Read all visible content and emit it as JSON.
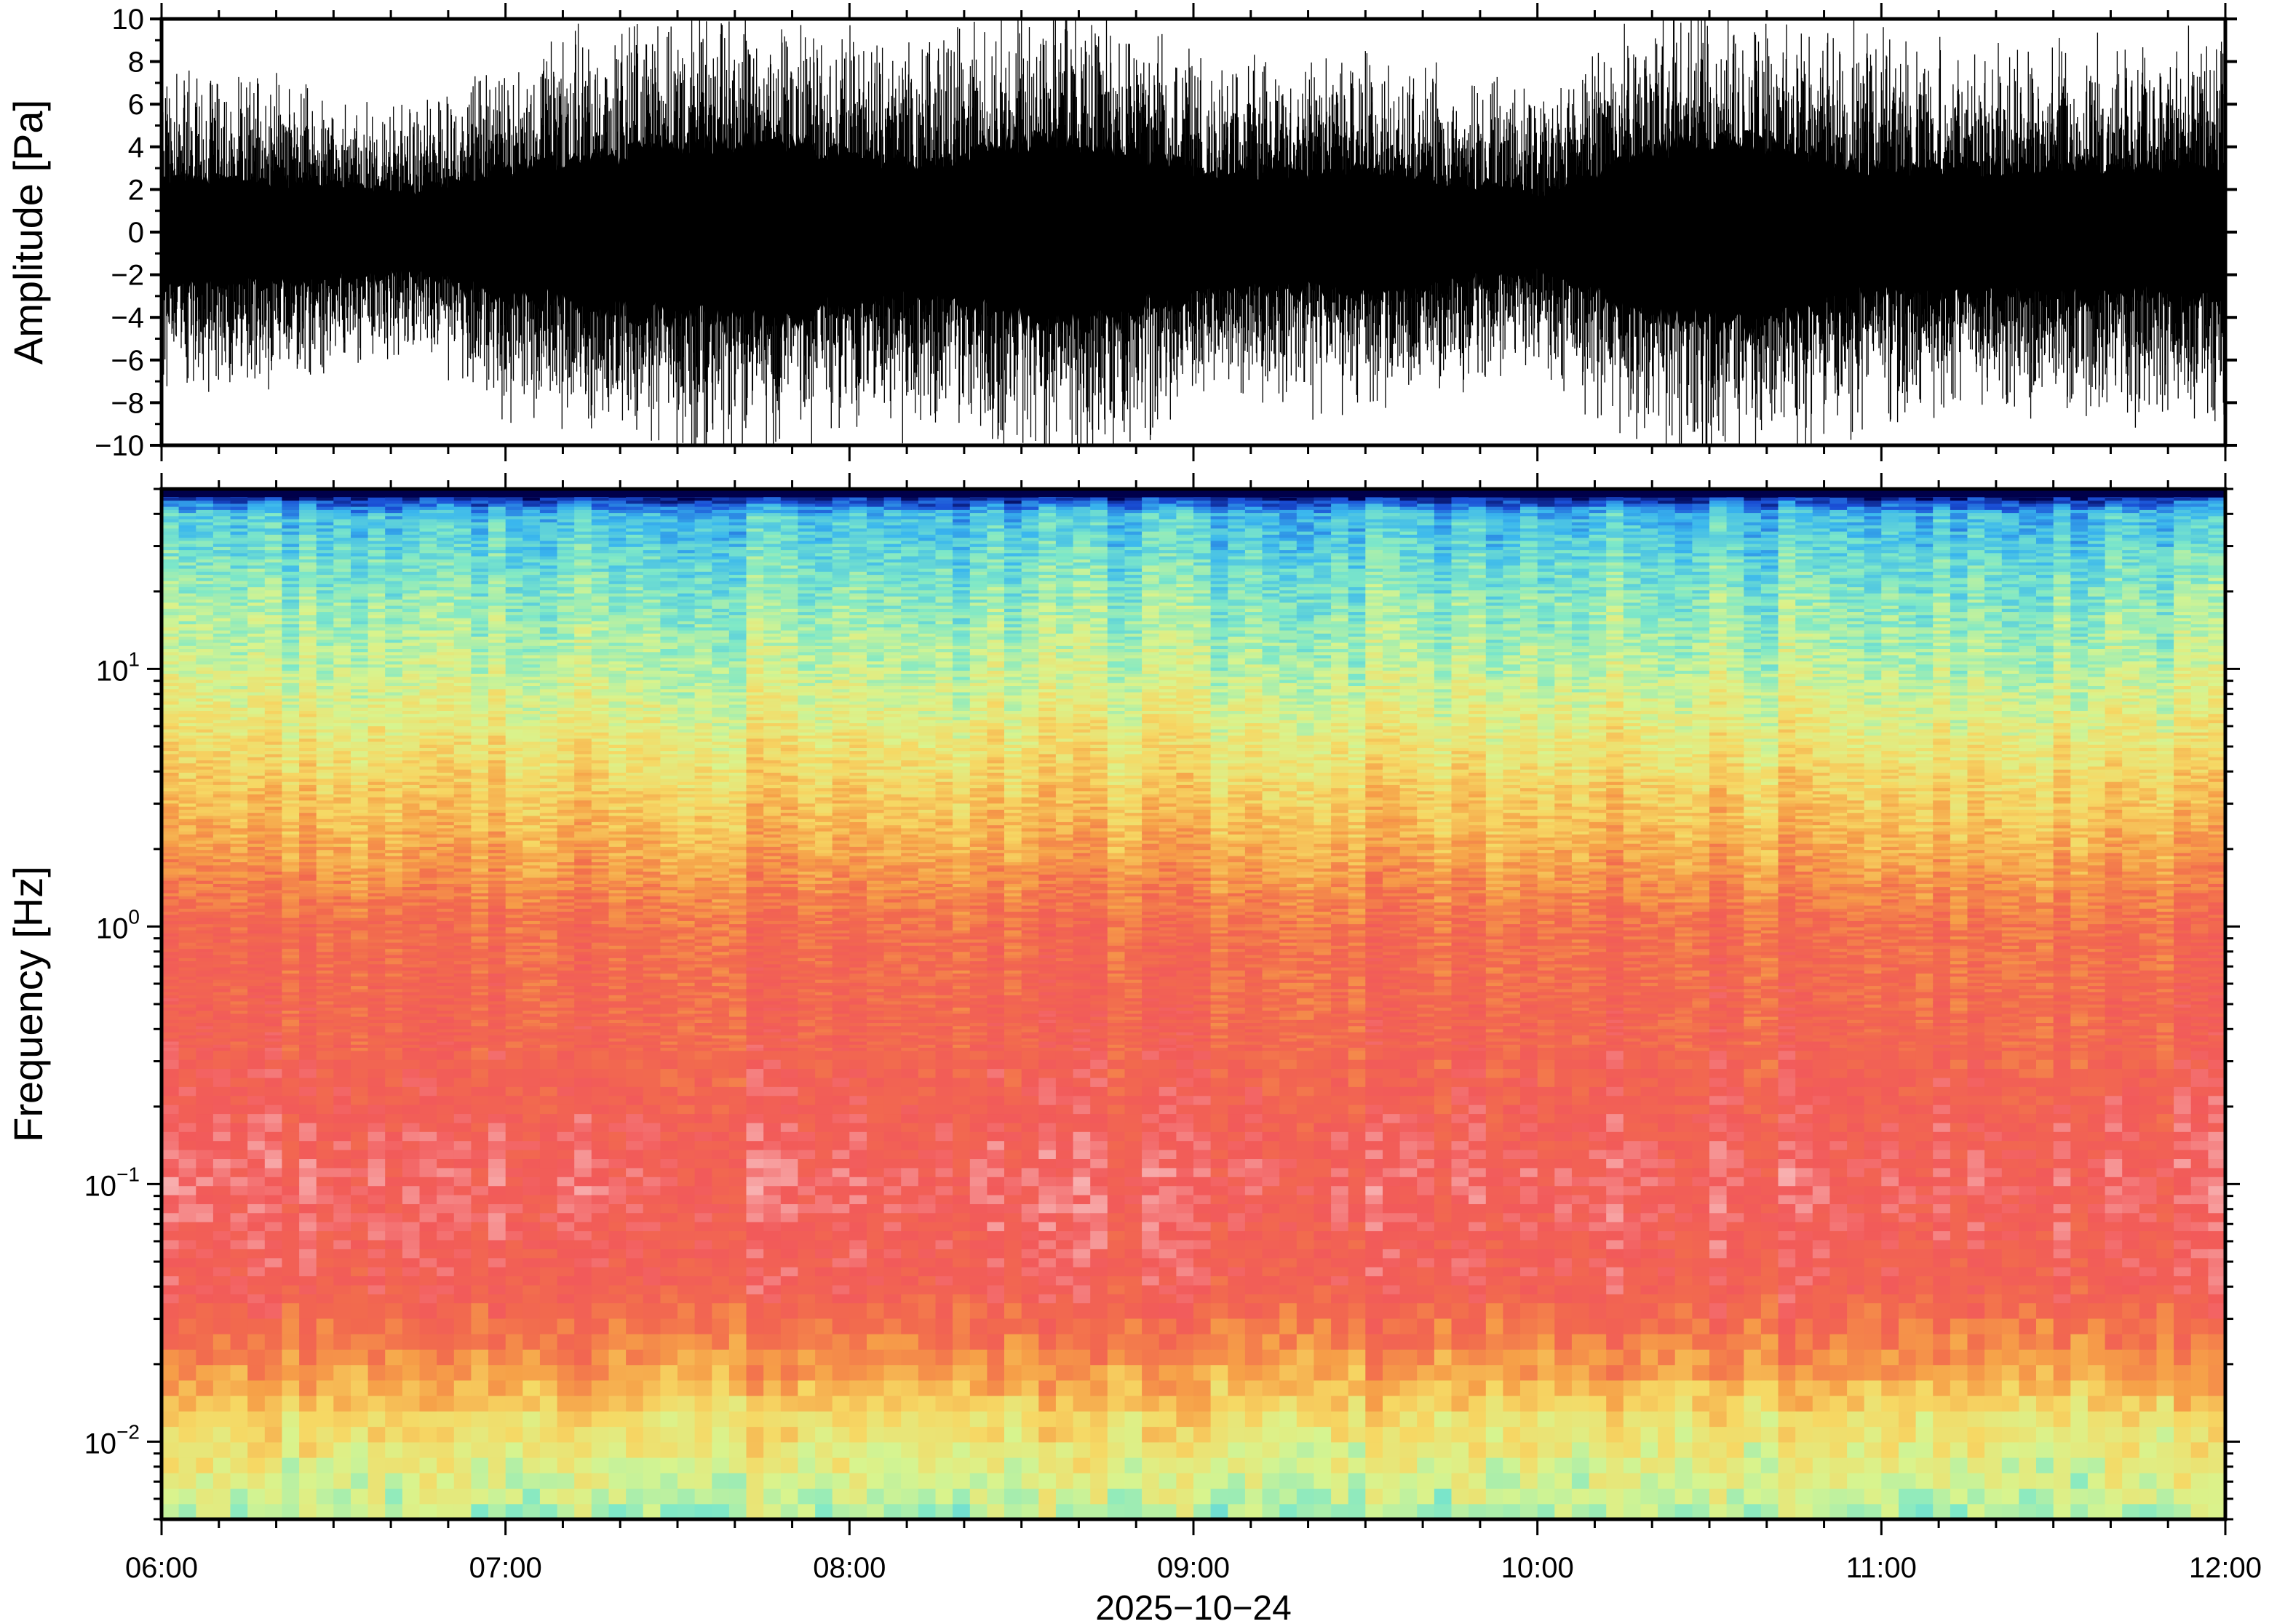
{
  "chart_data": [
    {
      "type": "line",
      "panel": "waveform",
      "ylabel": "Amplitude [Pa]",
      "ylim": [
        -10,
        10
      ],
      "yticks": [
        10,
        8,
        6,
        4,
        2,
        0,
        -2,
        -4,
        -6,
        -8,
        -10
      ],
      "ytick_labels": [
        "10",
        "8",
        "6",
        "4",
        "2",
        "0",
        "−2",
        "−4",
        "−6",
        "−8",
        "−10"
      ],
      "xlim": [
        "06:00",
        "12:00"
      ],
      "grid": false,
      "envelope": {
        "description_values_hours": [
          6.0,
          6.25,
          6.5,
          6.75,
          7.0,
          7.25,
          7.5,
          7.75,
          8.0,
          8.25,
          8.5,
          8.75,
          9.0,
          9.25,
          9.5,
          9.75,
          10.0,
          10.25,
          10.5,
          10.75,
          11.0,
          11.25,
          11.5,
          11.75,
          12.0
        ],
        "core_amplitude": [
          2.5,
          2.5,
          2.3,
          2.0,
          3.0,
          3.5,
          4.0,
          4.5,
          3.5,
          3.2,
          4.2,
          4.0,
          3.0,
          2.8,
          3.0,
          2.5,
          1.8,
          3.5,
          4.5,
          3.8,
          3.0,
          3.0,
          3.2,
          3.0,
          3.0
        ],
        "peak_amplitude": [
          7,
          7,
          6,
          5.5,
          8,
          9,
          10,
          10,
          9,
          8.5,
          10,
          10,
          8,
          7.5,
          8,
          7,
          6,
          9,
          10,
          9.5,
          8.5,
          8,
          8.5,
          8.5,
          8.5
        ]
      }
    },
    {
      "type": "heatmap",
      "panel": "spectrogram",
      "ylabel": "Frequency [Hz]",
      "yscale": "log",
      "ylim": [
        0.005,
        50
      ],
      "ytick_labels": [
        {
          "value": 10,
          "base": "10",
          "exp": "1"
        },
        {
          "value": 1,
          "base": "10",
          "exp": "0"
        },
        {
          "value": 0.1,
          "base": "10",
          "exp": "−1"
        },
        {
          "value": 0.01,
          "base": "10",
          "exp": "−2"
        }
      ],
      "xlim": [
        "06:00",
        "12:00"
      ],
      "xtick_labels": [
        "06:00",
        "07:00",
        "08:00",
        "09:00",
        "10:00",
        "11:00",
        "12:00"
      ],
      "xlabel": "2025−10−24",
      "colormap": [
        "#00004a",
        "#1a4fd6",
        "#3ab7ee",
        "#7ee8c8",
        "#d8f48e",
        "#f6d864",
        "#f6a048",
        "#f26a4e",
        "#f25a5a",
        "#f8b0b0"
      ],
      "profile_by_log_frequency": [
        {
          "log_f": 1.69,
          "level": 0.0
        },
        {
          "log_f": 1.6,
          "level": 0.25
        },
        {
          "log_f": 1.3,
          "level": 0.35
        },
        {
          "log_f": 1.0,
          "level": 0.42
        },
        {
          "log_f": 0.6,
          "level": 0.55
        },
        {
          "log_f": 0.3,
          "level": 0.65
        },
        {
          "log_f": 0.0,
          "level": 0.78
        },
        {
          "log_f": -0.5,
          "level": 0.82
        },
        {
          "log_f": -1.0,
          "level": 0.9
        },
        {
          "log_f": -1.4,
          "level": 0.85
        },
        {
          "log_f": -1.65,
          "level": 0.72
        },
        {
          "log_f": -1.9,
          "level": 0.55
        },
        {
          "log_f": -2.3,
          "level": 0.4
        }
      ]
    }
  ]
}
